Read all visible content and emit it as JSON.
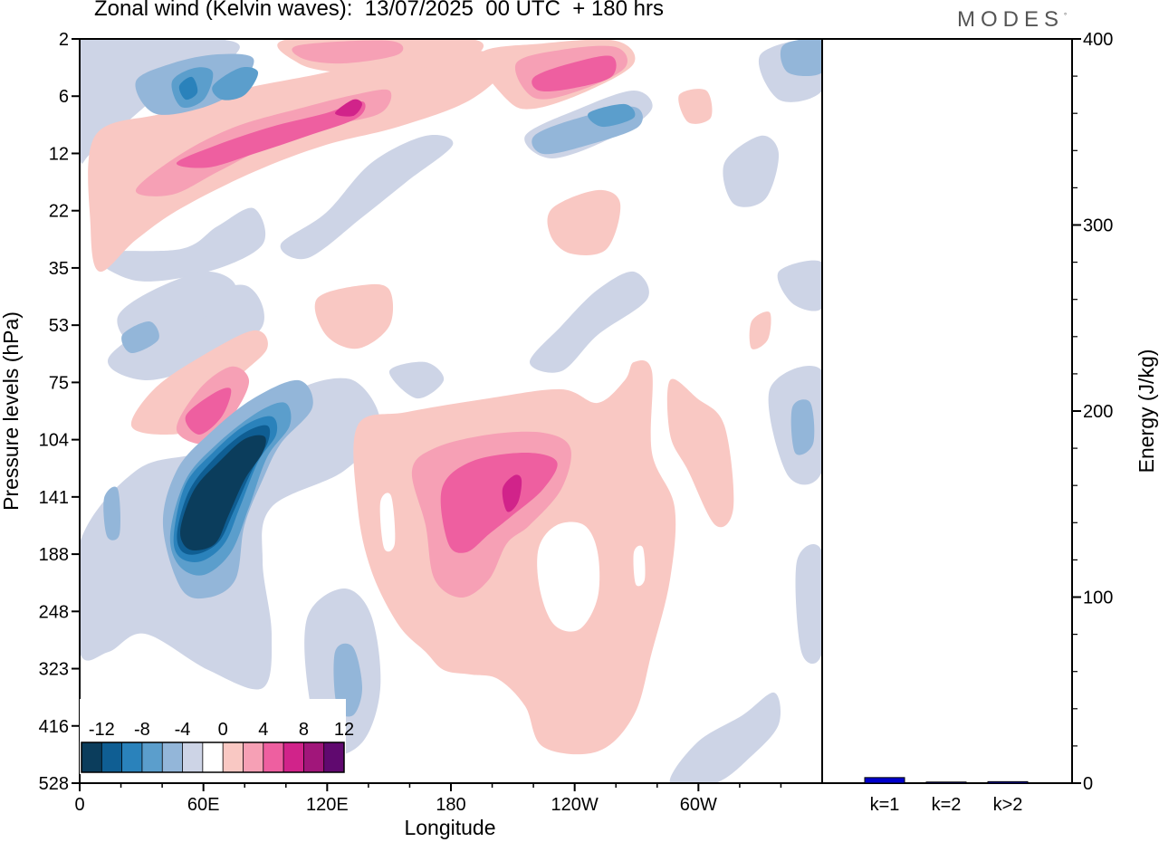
{
  "title": "Zonal wind (Kelvin waves):  13/07/2025  00 UTC  + 180 hrs",
  "brand": "MODES",
  "brand_mark": "°",
  "chart_data": [
    {
      "type": "heatmap",
      "title": "Zonal wind (Kelvin waves):  13/07/2025  00 UTC  + 180 hrs",
      "xlabel": "Longitude",
      "ylabel": "Pressure levels (hPa)",
      "x_ticks": [
        "0",
        "60E",
        "120E",
        "180",
        "120W",
        "60W"
      ],
      "y_ticks": [
        "2",
        "6",
        "12",
        "22",
        "35",
        "53",
        "75",
        "104",
        "141",
        "188",
        "248",
        "323",
        "416",
        "528"
      ],
      "colorbar": {
        "labels": [
          "-12",
          "-8",
          "-4",
          "0",
          "4",
          "8",
          "12"
        ],
        "levels": [
          -14,
          -12,
          -10,
          -8,
          -6,
          -4,
          -2,
          2,
          4,
          6,
          8,
          10,
          12,
          14
        ],
        "colors": [
          "#0b3d5c",
          "#0f5e93",
          "#2a82bb",
          "#5b9ecc",
          "#93b6d9",
          "#cdd4e6",
          "#ffffff",
          "#f9c8c3",
          "#f6a0b5",
          "#ee5fa0",
          "#d1238a",
          "#a1167a",
          "#60096f"
        ]
      },
      "features": [
        {
          "name": "strong easterly core",
          "lon_range": [
            48,
            88
          ],
          "p_range": [
            104,
            200
          ],
          "min_value": -14
        },
        {
          "name": "westerly anomaly",
          "lon_range": [
            165,
            230
          ],
          "p_range": [
            104,
            188
          ],
          "max_value": 11
        },
        {
          "name": "upper westerly band",
          "lon_range": [
            25,
            120
          ],
          "p_range": [
            4,
            22
          ],
          "max_value": 10
        },
        {
          "name": "upper easterly band",
          "lon_range": [
            25,
            80
          ],
          "p_range": [
            2,
            12
          ],
          "min_value": -9
        },
        {
          "name": "westerly lobe",
          "lon_range": [
            45,
            75
          ],
          "p_range": [
            75,
            115
          ],
          "max_value": 8
        },
        {
          "name": "broad positive region",
          "lon_range": [
            125,
            285
          ],
          "p_range": [
            104,
            416
          ],
          "max_value": 4
        }
      ]
    },
    {
      "type": "bar",
      "ylabel": "Energy (J/kg)",
      "ylim": [
        0,
        400
      ],
      "y_ticks": [
        "0",
        "100",
        "200",
        "300",
        "400"
      ],
      "categories": [
        "k=1",
        "k=2",
        "k>2"
      ],
      "values": [
        3,
        0.6,
        0.8
      ],
      "colors": [
        "#0000cc",
        "#0000cc",
        "#0000cc"
      ]
    }
  ]
}
